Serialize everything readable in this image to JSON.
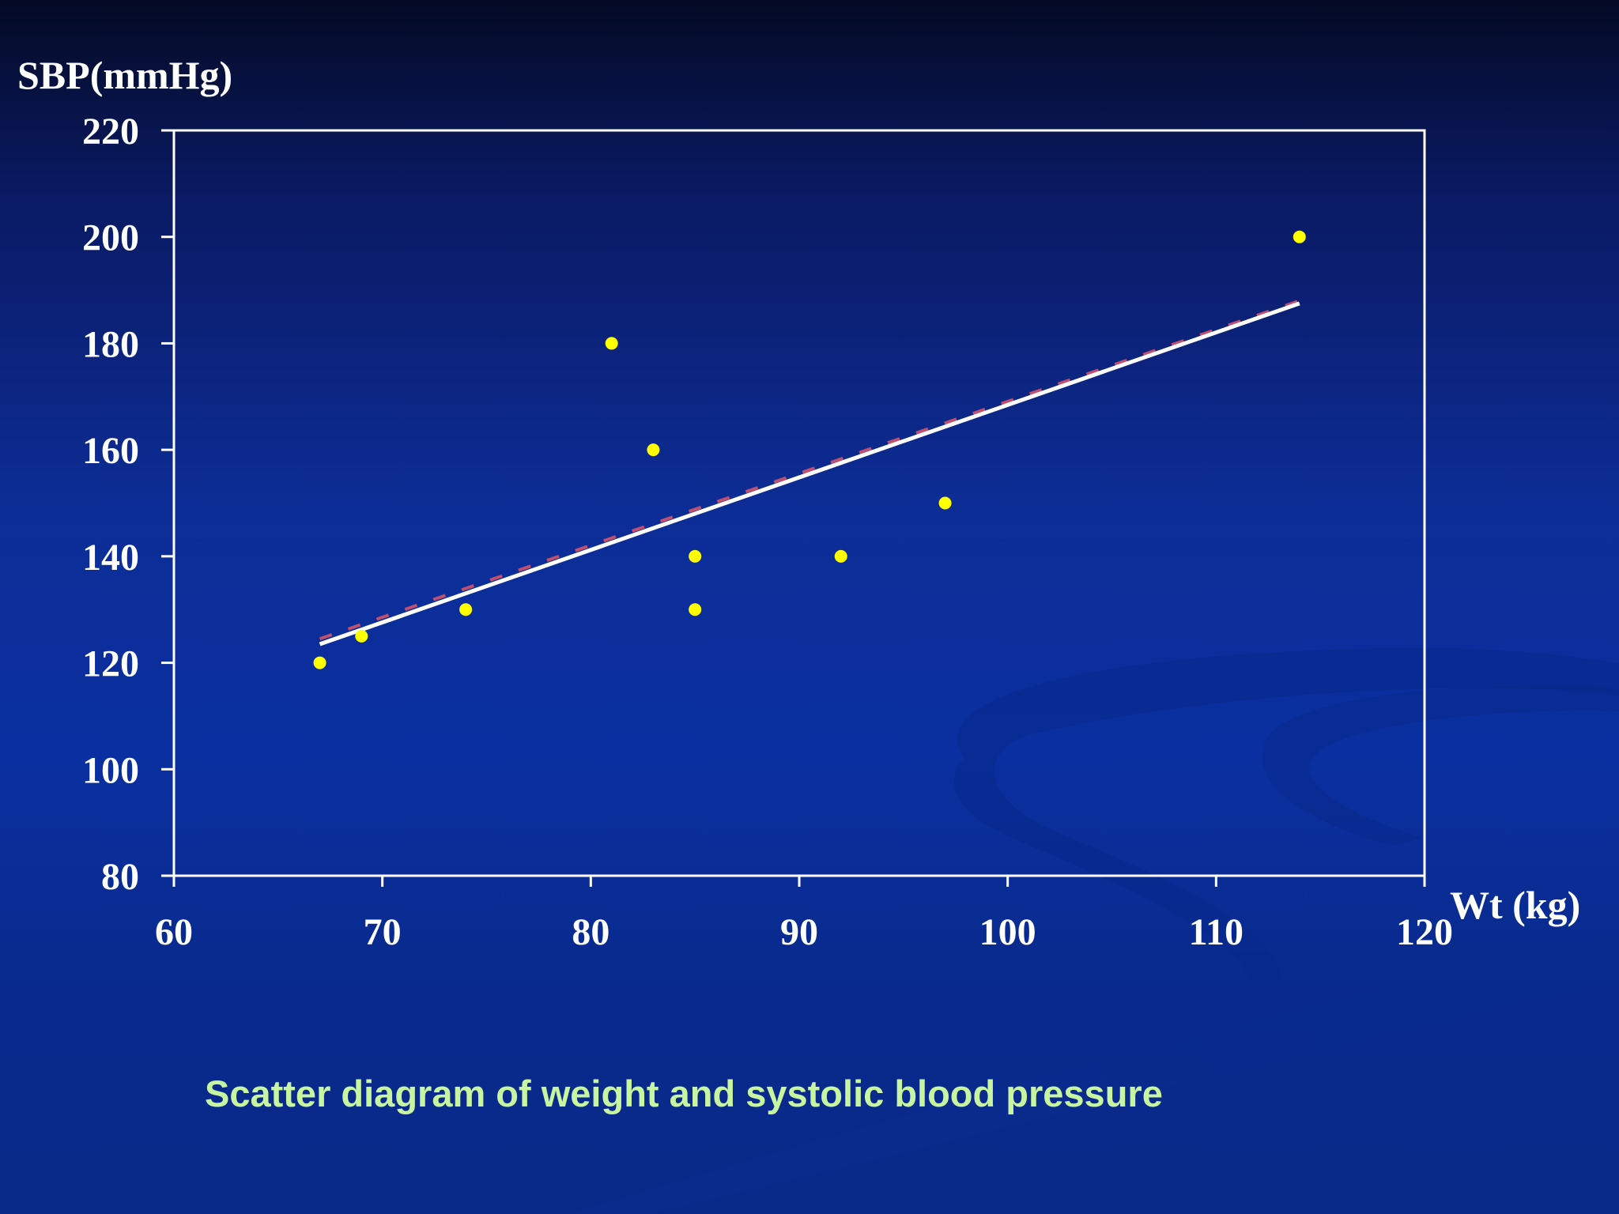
{
  "slide": {
    "caption": "Scatter diagram of weight and systolic blood pressure",
    "background_color": "#0a2fa0",
    "caption_color": "#c8f5a0"
  },
  "chart_data": {
    "type": "scatter",
    "title": "",
    "xlabel": "Wt (kg)",
    "ylabel": "SBP(mmHg)",
    "xlim": [
      60,
      120
    ],
    "ylim": [
      80,
      220
    ],
    "x_ticks": [
      "60",
      "70",
      "80",
      "90",
      "100",
      "110",
      "120"
    ],
    "y_ticks": [
      "80",
      "100",
      "120",
      "140",
      "160",
      "180",
      "200",
      "220"
    ],
    "grid": false,
    "legend": "none",
    "series": [
      {
        "color": "#ffff00",
        "points": [
          {
            "x": 67,
            "y": 120
          },
          {
            "x": 69,
            "y": 125
          },
          {
            "x": 74,
            "y": 130
          },
          {
            "x": 81,
            "y": 180
          },
          {
            "x": 83,
            "y": 160
          },
          {
            "x": 85,
            "y": 140
          },
          {
            "x": 85,
            "y": 130
          },
          {
            "x": 92,
            "y": 140
          },
          {
            "x": 97,
            "y": 150
          },
          {
            "x": 114,
            "y": 200
          }
        ]
      }
    ],
    "regression_lines": [
      {
        "style": "solid",
        "color": "#ffffff",
        "x": [
          67,
          114
        ],
        "y": [
          123.5,
          187.5
        ]
      },
      {
        "style": "dashed",
        "color": "#c0506e",
        "x": [
          67,
          114
        ],
        "y": [
          124.5,
          188
        ]
      }
    ],
    "axis_color": "#ffffff"
  }
}
